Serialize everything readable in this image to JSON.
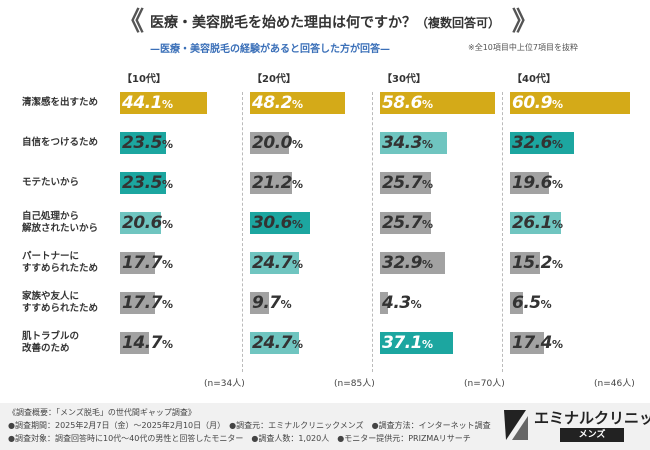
{
  "title": "医療・美容脱毛を始めた理由は何ですか？",
  "title_suffix": "（複数回答可）",
  "subtitle": "—医療・美容脱毛の経験があると回答した方が回答—",
  "note_top": "※全10項目中上位7項目を抜粋",
  "unit": "%",
  "colors": {
    "top": "#d4aa18",
    "teal_dark": "#1ca6a0",
    "teal_light": "#6fc5c0",
    "gray": "#a2a2a2"
  },
  "chart_data": {
    "type": "bar",
    "orientation": "horizontal",
    "xlim": [
      0,
      100
    ],
    "categories": [
      "清潔感を出すため",
      "自信をつけるため",
      "モテたいから",
      "自己処理から\n解放されたいから",
      "パートナーに\nすすめられたため",
      "家族や友人に\nすすめられたため",
      "肌トラブルの\n改善のため"
    ],
    "series": [
      {
        "name": "【10代】",
        "n": "(n=34人)",
        "values": [
          44.1,
          23.5,
          23.5,
          20.6,
          17.7,
          17.7,
          14.7
        ],
        "styles": [
          "top",
          "teal_dark",
          "teal_dark",
          "teal_light",
          "gray",
          "gray",
          "gray"
        ]
      },
      {
        "name": "【20代】",
        "n": "(n=85人)",
        "values": [
          48.2,
          20.0,
          21.2,
          30.6,
          24.7,
          9.7,
          24.7
        ],
        "styles": [
          "top",
          "gray",
          "gray",
          "teal_dark",
          "teal_light",
          "gray",
          "teal_light"
        ]
      },
      {
        "name": "【30代】",
        "n": "(n=70人)",
        "values": [
          58.6,
          34.3,
          25.7,
          25.7,
          32.9,
          4.3,
          37.1
        ],
        "styles": [
          "top",
          "teal_light",
          "gray",
          "gray",
          "gray",
          "gray",
          "teal_dark"
        ]
      },
      {
        "name": "【40代】",
        "n": "(n=46人)",
        "values": [
          60.9,
          32.6,
          19.6,
          26.1,
          15.2,
          6.5,
          17.4
        ],
        "styles": [
          "top",
          "teal_dark",
          "gray",
          "teal_light",
          "gray",
          "gray",
          "gray"
        ]
      }
    ]
  },
  "footer": {
    "lines": [
      "《調査概要：「メンズ脱毛」の世代間ギャップ調査》",
      "●調査期間：2025年2月7日（金）〜2025年2月10日（月）　●調査元：エミナルクリニックメンズ　●調査方法：インターネット調査",
      "●調査対象：調査回答時に10代〜40代の男性と回答したモニター　●調査人数：1,020人　●モニター提供元：PRIZMAリサーチ"
    ],
    "logo_text": "エミナルクリニック",
    "logo_badge": "メンズ"
  }
}
